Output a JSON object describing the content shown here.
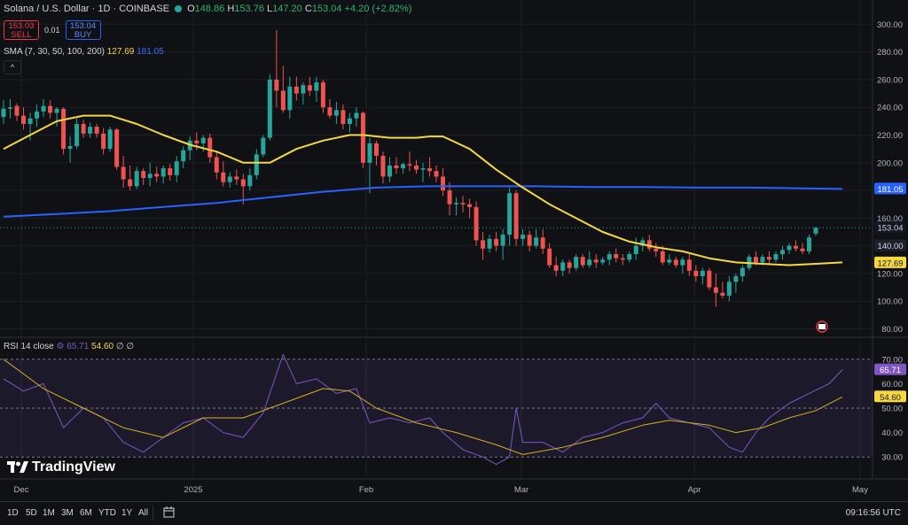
{
  "header": {
    "title": "Solana / U.S. Dollar · 1D · COINBASE",
    "open_label": "O",
    "open": "148.86",
    "high_label": "H",
    "high": "153.76",
    "low_label": "L",
    "low": "147.20",
    "close_label": "C",
    "close": "153.04",
    "change": "+4.20 (+2.82%)"
  },
  "trade": {
    "sell_price": "153.03",
    "sell_label": "SELL",
    "spread": "0.01",
    "buy_price": "153.04",
    "buy_label": "BUY"
  },
  "sma_legend": {
    "label": "SMA (7, 30, 50, 100, 200)",
    "v1": "127.69",
    "v2": "181.05"
  },
  "rsi_legend": {
    "label": "RSI 14 close",
    "v1": "65.71",
    "v2": "54.60",
    "extra": "∅ ∅"
  },
  "branding": {
    "name": "TradingView"
  },
  "toolbar": {
    "timeframes": [
      "1D",
      "5D",
      "1M",
      "3M",
      "6M",
      "YTD",
      "1Y",
      "All"
    ],
    "clock": "09:16:56 UTC"
  },
  "colors": {
    "up": "#26a69a",
    "down": "#ef5350",
    "sma_fast": "#f5d742",
    "sma_slow": "#2962ff",
    "rsi": "#7e57c2",
    "rsi_ma": "#d4b21e"
  },
  "chart_data": {
    "type": "candlestick",
    "x_ticks": [
      "Dec",
      "2025",
      "Feb",
      "Mar",
      "Apr",
      "May"
    ],
    "price_axis": {
      "ticks": [
        80,
        100,
        120,
        140,
        160,
        180,
        200,
        220,
        240,
        260,
        280,
        300
      ],
      "range": [
        72,
        306
      ]
    },
    "price_labels": {
      "last": "153.04",
      "sma_slow": "181.05",
      "sma_fast": "127.69",
      "level": "140.00"
    },
    "candles": [
      {
        "o": 233,
        "h": 245,
        "l": 228,
        "c": 239
      },
      {
        "o": 239,
        "h": 246,
        "l": 232,
        "c": 240
      },
      {
        "o": 241,
        "h": 243,
        "l": 230,
        "c": 234
      },
      {
        "o": 234,
        "h": 240,
        "l": 224,
        "c": 228
      },
      {
        "o": 228,
        "h": 236,
        "l": 216,
        "c": 232
      },
      {
        "o": 232,
        "h": 242,
        "l": 226,
        "c": 237
      },
      {
        "o": 237,
        "h": 246,
        "l": 233,
        "c": 241
      },
      {
        "o": 241,
        "h": 245,
        "l": 232,
        "c": 236
      },
      {
        "o": 236,
        "h": 240,
        "l": 226,
        "c": 239
      },
      {
        "o": 239,
        "h": 240,
        "l": 206,
        "c": 210
      },
      {
        "o": 210,
        "h": 219,
        "l": 200,
        "c": 212
      },
      {
        "o": 212,
        "h": 232,
        "l": 210,
        "c": 228
      },
      {
        "o": 228,
        "h": 231,
        "l": 218,
        "c": 221
      },
      {
        "o": 221,
        "h": 229,
        "l": 218,
        "c": 226
      },
      {
        "o": 226,
        "h": 228,
        "l": 218,
        "c": 221
      },
      {
        "o": 221,
        "h": 225,
        "l": 206,
        "c": 210
      },
      {
        "o": 210,
        "h": 226,
        "l": 208,
        "c": 224
      },
      {
        "o": 224,
        "h": 225,
        "l": 195,
        "c": 197
      },
      {
        "o": 197,
        "h": 205,
        "l": 182,
        "c": 188
      },
      {
        "o": 188,
        "h": 198,
        "l": 180,
        "c": 183
      },
      {
        "o": 183,
        "h": 197,
        "l": 181,
        "c": 194
      },
      {
        "o": 194,
        "h": 196,
        "l": 184,
        "c": 189
      },
      {
        "o": 189,
        "h": 200,
        "l": 183,
        "c": 192
      },
      {
        "o": 192,
        "h": 197,
        "l": 186,
        "c": 190
      },
      {
        "o": 190,
        "h": 198,
        "l": 185,
        "c": 196
      },
      {
        "o": 196,
        "h": 199,
        "l": 187,
        "c": 191
      },
      {
        "o": 191,
        "h": 205,
        "l": 186,
        "c": 201
      },
      {
        "o": 201,
        "h": 212,
        "l": 196,
        "c": 209
      },
      {
        "o": 209,
        "h": 219,
        "l": 202,
        "c": 216
      },
      {
        "o": 216,
        "h": 222,
        "l": 209,
        "c": 214
      },
      {
        "o": 214,
        "h": 220,
        "l": 208,
        "c": 218
      },
      {
        "o": 218,
        "h": 221,
        "l": 200,
        "c": 204
      },
      {
        "o": 204,
        "h": 208,
        "l": 188,
        "c": 193
      },
      {
        "o": 193,
        "h": 201,
        "l": 183,
        "c": 186
      },
      {
        "o": 186,
        "h": 193,
        "l": 182,
        "c": 190
      },
      {
        "o": 190,
        "h": 195,
        "l": 184,
        "c": 188
      },
      {
        "o": 188,
        "h": 192,
        "l": 170,
        "c": 183
      },
      {
        "o": 183,
        "h": 196,
        "l": 180,
        "c": 191
      },
      {
        "o": 191,
        "h": 210,
        "l": 188,
        "c": 206
      },
      {
        "o": 206,
        "h": 220,
        "l": 204,
        "c": 218
      },
      {
        "o": 218,
        "h": 264,
        "l": 216,
        "c": 260
      },
      {
        "o": 260,
        "h": 296,
        "l": 240,
        "c": 252
      },
      {
        "o": 252,
        "h": 270,
        "l": 236,
        "c": 238
      },
      {
        "o": 238,
        "h": 262,
        "l": 232,
        "c": 255
      },
      {
        "o": 255,
        "h": 262,
        "l": 245,
        "c": 250
      },
      {
        "o": 250,
        "h": 258,
        "l": 242,
        "c": 256
      },
      {
        "o": 256,
        "h": 262,
        "l": 248,
        "c": 252
      },
      {
        "o": 252,
        "h": 262,
        "l": 244,
        "c": 258
      },
      {
        "o": 258,
        "h": 260,
        "l": 236,
        "c": 240
      },
      {
        "o": 240,
        "h": 246,
        "l": 232,
        "c": 234
      },
      {
        "o": 234,
        "h": 244,
        "l": 228,
        "c": 238
      },
      {
        "o": 238,
        "h": 242,
        "l": 224,
        "c": 228
      },
      {
        "o": 228,
        "h": 236,
        "l": 222,
        "c": 232
      },
      {
        "o": 232,
        "h": 240,
        "l": 226,
        "c": 236
      },
      {
        "o": 236,
        "h": 237,
        "l": 196,
        "c": 200
      },
      {
        "o": 200,
        "h": 218,
        "l": 178,
        "c": 214
      },
      {
        "o": 214,
        "h": 216,
        "l": 198,
        "c": 205
      },
      {
        "o": 205,
        "h": 208,
        "l": 185,
        "c": 190
      },
      {
        "o": 190,
        "h": 204,
        "l": 186,
        "c": 198
      },
      {
        "o": 198,
        "h": 204,
        "l": 192,
        "c": 196
      },
      {
        "o": 196,
        "h": 200,
        "l": 192,
        "c": 199
      },
      {
        "o": 199,
        "h": 208,
        "l": 194,
        "c": 198
      },
      {
        "o": 198,
        "h": 202,
        "l": 192,
        "c": 195
      },
      {
        "o": 195,
        "h": 200,
        "l": 186,
        "c": 196
      },
      {
        "o": 196,
        "h": 204,
        "l": 190,
        "c": 194
      },
      {
        "o": 194,
        "h": 198,
        "l": 186,
        "c": 190
      },
      {
        "o": 190,
        "h": 196,
        "l": 176,
        "c": 180
      },
      {
        "o": 180,
        "h": 186,
        "l": 162,
        "c": 170
      },
      {
        "o": 170,
        "h": 175,
        "l": 162,
        "c": 171
      },
      {
        "o": 171,
        "h": 176,
        "l": 164,
        "c": 170
      },
      {
        "o": 170,
        "h": 174,
        "l": 160,
        "c": 168
      },
      {
        "o": 168,
        "h": 172,
        "l": 140,
        "c": 144
      },
      {
        "o": 144,
        "h": 150,
        "l": 130,
        "c": 138
      },
      {
        "o": 138,
        "h": 148,
        "l": 135,
        "c": 145
      },
      {
        "o": 145,
        "h": 150,
        "l": 136,
        "c": 140
      },
      {
        "o": 140,
        "h": 152,
        "l": 130,
        "c": 148
      },
      {
        "o": 148,
        "h": 182,
        "l": 140,
        "c": 178
      },
      {
        "o": 178,
        "h": 180,
        "l": 140,
        "c": 145
      },
      {
        "o": 145,
        "h": 152,
        "l": 140,
        "c": 148
      },
      {
        "o": 148,
        "h": 151,
        "l": 136,
        "c": 140
      },
      {
        "o": 140,
        "h": 152,
        "l": 138,
        "c": 146
      },
      {
        "o": 146,
        "h": 152,
        "l": 134,
        "c": 138
      },
      {
        "o": 138,
        "h": 142,
        "l": 124,
        "c": 126
      },
      {
        "o": 126,
        "h": 132,
        "l": 118,
        "c": 122
      },
      {
        "o": 122,
        "h": 130,
        "l": 118,
        "c": 128
      },
      {
        "o": 128,
        "h": 130,
        "l": 120,
        "c": 124
      },
      {
        "o": 124,
        "h": 134,
        "l": 122,
        "c": 132
      },
      {
        "o": 132,
        "h": 134,
        "l": 124,
        "c": 126
      },
      {
        "o": 126,
        "h": 136,
        "l": 124,
        "c": 130
      },
      {
        "o": 130,
        "h": 134,
        "l": 124,
        "c": 128
      },
      {
        "o": 128,
        "h": 132,
        "l": 126,
        "c": 130
      },
      {
        "o": 130,
        "h": 136,
        "l": 126,
        "c": 134
      },
      {
        "o": 134,
        "h": 138,
        "l": 128,
        "c": 131
      },
      {
        "o": 131,
        "h": 134,
        "l": 126,
        "c": 130
      },
      {
        "o": 130,
        "h": 136,
        "l": 128,
        "c": 134
      },
      {
        "o": 134,
        "h": 146,
        "l": 130,
        "c": 140
      },
      {
        "o": 140,
        "h": 146,
        "l": 136,
        "c": 144
      },
      {
        "o": 144,
        "h": 148,
        "l": 136,
        "c": 138
      },
      {
        "o": 138,
        "h": 142,
        "l": 132,
        "c": 136
      },
      {
        "o": 136,
        "h": 140,
        "l": 126,
        "c": 128
      },
      {
        "o": 128,
        "h": 134,
        "l": 126,
        "c": 130
      },
      {
        "o": 130,
        "h": 132,
        "l": 124,
        "c": 126
      },
      {
        "o": 126,
        "h": 132,
        "l": 120,
        "c": 130
      },
      {
        "o": 130,
        "h": 134,
        "l": 118,
        "c": 122
      },
      {
        "o": 122,
        "h": 126,
        "l": 114,
        "c": 118
      },
      {
        "o": 118,
        "h": 124,
        "l": 112,
        "c": 122
      },
      {
        "o": 122,
        "h": 124,
        "l": 108,
        "c": 110
      },
      {
        "o": 110,
        "h": 120,
        "l": 96,
        "c": 106
      },
      {
        "o": 106,
        "h": 114,
        "l": 102,
        "c": 104
      },
      {
        "o": 104,
        "h": 118,
        "l": 100,
        "c": 114
      },
      {
        "o": 114,
        "h": 120,
        "l": 106,
        "c": 118
      },
      {
        "o": 118,
        "h": 126,
        "l": 114,
        "c": 124
      },
      {
        "o": 124,
        "h": 134,
        "l": 122,
        "c": 132
      },
      {
        "o": 132,
        "h": 136,
        "l": 126,
        "c": 128
      },
      {
        "o": 128,
        "h": 134,
        "l": 126,
        "c": 132
      },
      {
        "o": 132,
        "h": 136,
        "l": 126,
        "c": 130
      },
      {
        "o": 130,
        "h": 136,
        "l": 128,
        "c": 134
      },
      {
        "o": 134,
        "h": 140,
        "l": 130,
        "c": 137
      },
      {
        "o": 137,
        "h": 142,
        "l": 134,
        "c": 140
      },
      {
        "o": 140,
        "h": 144,
        "l": 136,
        "c": 138
      },
      {
        "o": 138,
        "h": 142,
        "l": 134,
        "c": 136
      },
      {
        "o": 136,
        "h": 148,
        "l": 134,
        "c": 146
      },
      {
        "o": 148.86,
        "h": 153.76,
        "l": 147.2,
        "c": 153.04
      }
    ],
    "sma_fast": [
      {
        "i": 0,
        "v": 210
      },
      {
        "i": 4,
        "v": 220
      },
      {
        "i": 8,
        "v": 230
      },
      {
        "i": 12,
        "v": 234
      },
      {
        "i": 16,
        "v": 234
      },
      {
        "i": 20,
        "v": 228
      },
      {
        "i": 24,
        "v": 220
      },
      {
        "i": 28,
        "v": 213
      },
      {
        "i": 32,
        "v": 208
      },
      {
        "i": 36,
        "v": 200
      },
      {
        "i": 40,
        "v": 200
      },
      {
        "i": 44,
        "v": 210
      },
      {
        "i": 48,
        "v": 216
      },
      {
        "i": 52,
        "v": 220
      },
      {
        "i": 54,
        "v": 220
      },
      {
        "i": 58,
        "v": 218
      },
      {
        "i": 62,
        "v": 218
      },
      {
        "i": 64,
        "v": 219
      },
      {
        "i": 66,
        "v": 219
      },
      {
        "i": 70,
        "v": 210
      },
      {
        "i": 74,
        "v": 195
      },
      {
        "i": 78,
        "v": 182
      },
      {
        "i": 82,
        "v": 170
      },
      {
        "i": 86,
        "v": 160
      },
      {
        "i": 90,
        "v": 150
      },
      {
        "i": 94,
        "v": 143
      },
      {
        "i": 98,
        "v": 139
      },
      {
        "i": 102,
        "v": 136
      },
      {
        "i": 106,
        "v": 131
      },
      {
        "i": 110,
        "v": 128
      },
      {
        "i": 114,
        "v": 127
      },
      {
        "i": 118,
        "v": 126
      },
      {
        "i": 122,
        "v": 127
      },
      {
        "i": 126,
        "v": 128
      }
    ],
    "sma_slow": [
      {
        "i": 0,
        "v": 161
      },
      {
        "i": 8,
        "v": 163
      },
      {
        "i": 16,
        "v": 165
      },
      {
        "i": 24,
        "v": 168
      },
      {
        "i": 32,
        "v": 171
      },
      {
        "i": 40,
        "v": 175
      },
      {
        "i": 48,
        "v": 179
      },
      {
        "i": 56,
        "v": 182
      },
      {
        "i": 64,
        "v": 183
      },
      {
        "i": 72,
        "v": 183
      },
      {
        "i": 80,
        "v": 183
      },
      {
        "i": 88,
        "v": 182.5
      },
      {
        "i": 96,
        "v": 182.5
      },
      {
        "i": 104,
        "v": 182
      },
      {
        "i": 112,
        "v": 182
      },
      {
        "i": 120,
        "v": 181.5
      },
      {
        "i": 126,
        "v": 181.05
      }
    ],
    "rsi_axis": {
      "ticks": [
        30,
        40,
        50,
        60,
        70
      ],
      "range": [
        25,
        75
      ],
      "bands": [
        30,
        50,
        70
      ]
    },
    "rsi_labels": {
      "rsi": "65.71",
      "ma": "54.60"
    },
    "rsi": [
      {
        "i": 0,
        "v": 62
      },
      {
        "i": 3,
        "v": 57
      },
      {
        "i": 6,
        "v": 60
      },
      {
        "i": 9,
        "v": 42
      },
      {
        "i": 12,
        "v": 50
      },
      {
        "i": 15,
        "v": 46
      },
      {
        "i": 18,
        "v": 36
      },
      {
        "i": 21,
        "v": 32
      },
      {
        "i": 24,
        "v": 38
      },
      {
        "i": 27,
        "v": 44
      },
      {
        "i": 30,
        "v": 46
      },
      {
        "i": 33,
        "v": 40
      },
      {
        "i": 36,
        "v": 38
      },
      {
        "i": 39,
        "v": 48
      },
      {
        "i": 41,
        "v": 64
      },
      {
        "i": 42,
        "v": 72
      },
      {
        "i": 44,
        "v": 60
      },
      {
        "i": 47,
        "v": 62
      },
      {
        "i": 50,
        "v": 56
      },
      {
        "i": 53,
        "v": 58
      },
      {
        "i": 55,
        "v": 44
      },
      {
        "i": 58,
        "v": 46
      },
      {
        "i": 61,
        "v": 44
      },
      {
        "i": 64,
        "v": 46
      },
      {
        "i": 66,
        "v": 40
      },
      {
        "i": 69,
        "v": 33
      },
      {
        "i": 72,
        "v": 30
      },
      {
        "i": 74,
        "v": 27
      },
      {
        "i": 76,
        "v": 30
      },
      {
        "i": 77,
        "v": 50
      },
      {
        "i": 78,
        "v": 36
      },
      {
        "i": 81,
        "v": 36
      },
      {
        "i": 84,
        "v": 32
      },
      {
        "i": 87,
        "v": 38
      },
      {
        "i": 90,
        "v": 40
      },
      {
        "i": 93,
        "v": 44
      },
      {
        "i": 96,
        "v": 46
      },
      {
        "i": 98,
        "v": 52
      },
      {
        "i": 100,
        "v": 46
      },
      {
        "i": 103,
        "v": 44
      },
      {
        "i": 106,
        "v": 42
      },
      {
        "i": 109,
        "v": 34
      },
      {
        "i": 111,
        "v": 32
      },
      {
        "i": 113,
        "v": 40
      },
      {
        "i": 115,
        "v": 46
      },
      {
        "i": 118,
        "v": 52
      },
      {
        "i": 121,
        "v": 56
      },
      {
        "i": 124,
        "v": 60
      },
      {
        "i": 126,
        "v": 65.71
      }
    ],
    "rsi_ma": [
      {
        "i": 0,
        "v": 70
      },
      {
        "i": 6,
        "v": 58
      },
      {
        "i": 12,
        "v": 50
      },
      {
        "i": 18,
        "v": 42
      },
      {
        "i": 24,
        "v": 38
      },
      {
        "i": 30,
        "v": 46
      },
      {
        "i": 36,
        "v": 46
      },
      {
        "i": 42,
        "v": 52
      },
      {
        "i": 48,
        "v": 58
      },
      {
        "i": 52,
        "v": 57
      },
      {
        "i": 56,
        "v": 50
      },
      {
        "i": 62,
        "v": 44
      },
      {
        "i": 68,
        "v": 40
      },
      {
        "i": 74,
        "v": 35
      },
      {
        "i": 78,
        "v": 31
      },
      {
        "i": 84,
        "v": 34
      },
      {
        "i": 90,
        "v": 38
      },
      {
        "i": 96,
        "v": 43
      },
      {
        "i": 100,
        "v": 45
      },
      {
        "i": 106,
        "v": 43
      },
      {
        "i": 110,
        "v": 40
      },
      {
        "i": 114,
        "v": 42
      },
      {
        "i": 118,
        "v": 46
      },
      {
        "i": 122,
        "v": 49
      },
      {
        "i": 126,
        "v": 54.6
      }
    ]
  }
}
